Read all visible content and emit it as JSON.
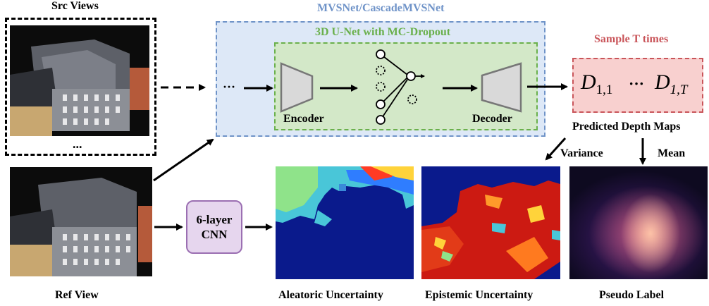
{
  "src_views": {
    "title": "Src Views",
    "ellipsis": "..."
  },
  "ref_view": {
    "title": "Ref View"
  },
  "network": {
    "outer_title": "MVSNet/CascadeMVSNet",
    "inner_title": "3D U-Net with MC-Dropout",
    "ellipsis": "···",
    "encoder": "Encoder",
    "decoder": "Decoder"
  },
  "sampling": {
    "title": "Sample T times",
    "d_first_base": "D",
    "d_first_sub": "1,1",
    "middle": "···",
    "d_last_base": "D",
    "d_last_sub": "1,T",
    "caption": "Predicted Depth Maps"
  },
  "arrows": {
    "variance": "Variance",
    "mean": "Mean"
  },
  "cnn": {
    "line1": "6-layer",
    "line2": "CNN"
  },
  "outputs": {
    "aleatoric": "Aleatoric Uncertainty",
    "epistemic": "Epistemic Uncertainty",
    "pseudo": "Pseudo Label"
  },
  "colors": {
    "outer_box_fill": "#dde8f7",
    "outer_box_border": "#6f93c8",
    "outer_title": "#6f93c8",
    "inner_box_fill": "#d3e8c8",
    "inner_box_border": "#6ab04c",
    "inner_title": "#6ab04c",
    "sample_fill": "#f8d0cf",
    "sample_border": "#c9555a",
    "sample_title": "#c9555a",
    "cnn_fill": "#e6d6ee",
    "cnn_border": "#9b6fb2",
    "trapezoid_fill": "#d9d9d9",
    "trapezoid_border": "#777777"
  }
}
